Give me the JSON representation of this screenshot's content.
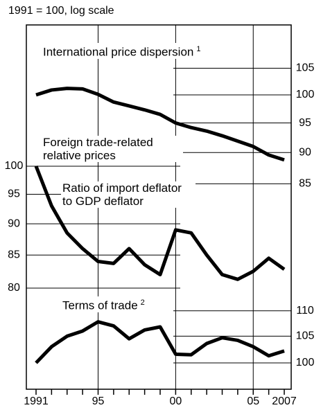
{
  "chart_data": {
    "type": "line",
    "subtitle": "1991 = 100, log scale",
    "x": [
      1991,
      1992,
      1993,
      1994,
      1995,
      1996,
      1997,
      1998,
      1999,
      2000,
      2001,
      2002,
      2003,
      2004,
      2005,
      2006,
      2007
    ],
    "xlim": [
      1991,
      2007
    ],
    "xticks": [
      1991,
      {
        "value": 1995,
        "label": "95"
      },
      {
        "value": 2000,
        "label": "00"
      },
      {
        "value": 2005,
        "label": "05"
      },
      2007
    ],
    "grid": true,
    "log_scale": true,
    "panels": [
      {
        "series": [
          {
            "name": "International price dispersion",
            "footnote": "1",
            "color": "#000000",
            "values": [
              100,
              100.9,
              101.2,
              101.1,
              100.1,
              98.7,
              98,
              97.3,
              96.5,
              95,
              94.2,
              93.6,
              92.8,
              91.9,
              91,
              89.6,
              88.8
            ]
          }
        ],
        "ylim": [
          82,
          114
        ],
        "yticks": [
          85,
          90,
          95,
          100,
          105
        ],
        "yaxis_side": "right"
      },
      {
        "title": "Foreign trade-related relative prices",
        "series": [
          {
            "name": "Ratio of import deflator to GDP deflator",
            "color": "#000000",
            "values": [
              100,
              93,
              88.5,
              86,
              84,
              83.7,
              86,
              83.5,
              82,
              89,
              88.5,
              85,
              82,
              81.3,
              82.5,
              84.5,
              82.8
            ]
          }
        ],
        "ylim": [
          78,
          106
        ],
        "yticks": [
          80,
          85,
          90,
          95,
          100
        ],
        "yaxis_side": "left"
      },
      {
        "series": [
          {
            "name": "Terms of trade",
            "footnote": "2",
            "color": "#000000",
            "values": [
              100,
              103,
              105,
              106,
              107.8,
              107,
              104.5,
              106.2,
              106.8,
              101.6,
              101.5,
              103.6,
              104.7,
              104.2,
              103,
              101.3,
              102.2
            ]
          }
        ],
        "ylim": [
          97,
          114
        ],
        "yticks": [
          100,
          105,
          110
        ],
        "yaxis_side": "right"
      }
    ]
  }
}
